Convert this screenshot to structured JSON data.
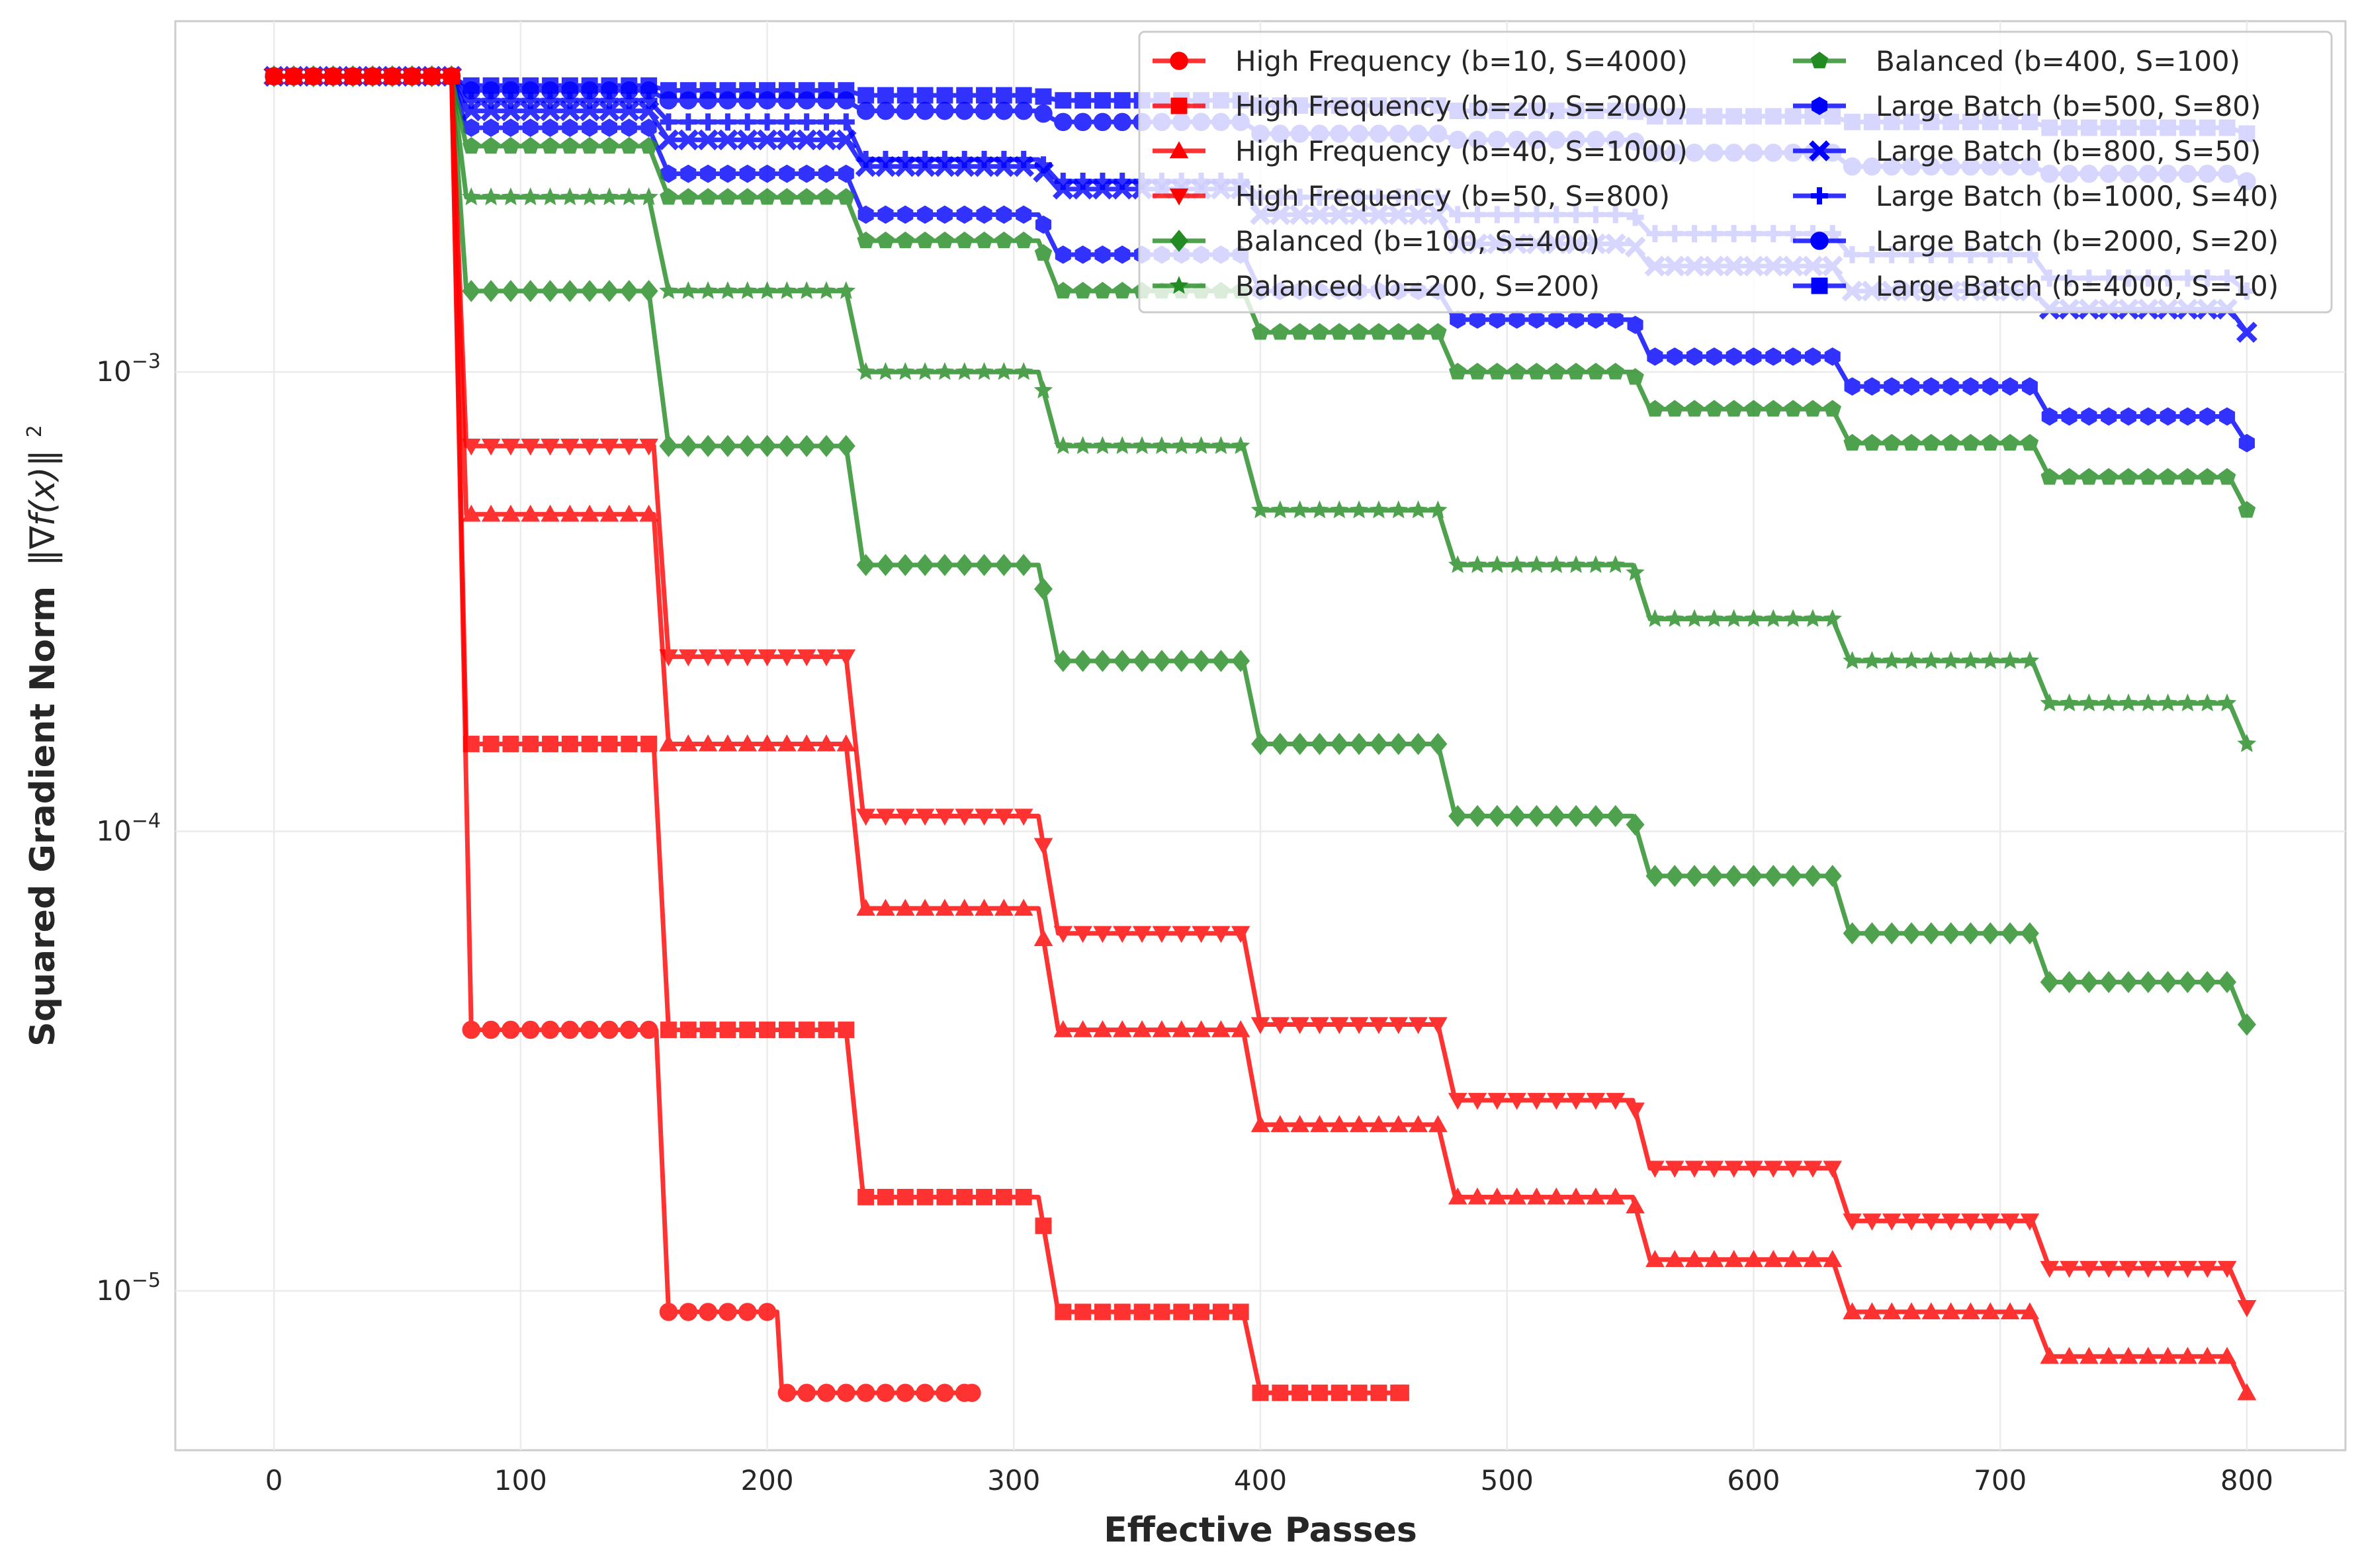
{
  "chart_data": {
    "type": "line",
    "title": "",
    "xlabel": "Effective Passes",
    "ylabel": "Squared Gradient Norm",
    "ylabel_math": "‖∇f(x)‖",
    "ylabel_power": "2",
    "yscale": "log",
    "xlim": [
      -40,
      840
    ],
    "ylim": [
      4.5e-06,
      0.0058
    ],
    "xticks": [
      0,
      100,
      200,
      300,
      400,
      500,
      600,
      700,
      800
    ],
    "yticks": [
      {
        "value": 1e-05,
        "base": "10",
        "exp": "−5"
      },
      {
        "value": 0.0001,
        "base": "10",
        "exp": "−4"
      },
      {
        "value": 0.001,
        "base": "10",
        "exp": "−3"
      }
    ],
    "grid": true,
    "legend_position": "top-right",
    "legend_columns": 2,
    "initial_value": 0.0044,
    "initial_until": 72,
    "series": [
      {
        "name": "High Frequency (b=10, S=4000)",
        "color": "#ff0000",
        "marker": "circle",
        "end": 283,
        "knots": [
          [
            72,
            0.0044
          ],
          [
            80,
            3.7e-05
          ],
          [
            155,
            3.7e-05
          ],
          [
            160,
            9e-06
          ],
          [
            204,
            9e-06
          ],
          [
            206,
            6e-06
          ],
          [
            283,
            6e-06
          ]
        ]
      },
      {
        "name": "High Frequency (b=20, S=2000)",
        "color": "#ff0000",
        "marker": "square",
        "end": 457,
        "knots": [
          [
            72,
            0.0044
          ],
          [
            78,
            0.000155
          ],
          [
            154,
            0.000155
          ],
          [
            160,
            3.7e-05
          ],
          [
            232,
            3.7e-05
          ],
          [
            239,
            1.6e-05
          ],
          [
            310,
            1.6e-05
          ],
          [
            318,
            9e-06
          ],
          [
            393,
            9e-06
          ],
          [
            400,
            6e-06
          ],
          [
            457,
            6e-06
          ]
        ]
      },
      {
        "name": "High Frequency (b=40, S=1000)",
        "color": "#ff0000",
        "marker": "triangle-up",
        "end": 800,
        "knots": [
          [
            72,
            0.0044
          ],
          [
            78,
            0.00049
          ],
          [
            154,
            0.00049
          ],
          [
            160,
            0.000155
          ],
          [
            232,
            0.000155
          ],
          [
            239,
            6.8e-05
          ],
          [
            310,
            6.8e-05
          ],
          [
            318,
            3.7e-05
          ],
          [
            393,
            3.7e-05
          ],
          [
            400,
            2.3e-05
          ],
          [
            472,
            2.3e-05
          ],
          [
            479,
            1.6e-05
          ],
          [
            551,
            1.6e-05
          ],
          [
            558,
            1.17e-05
          ],
          [
            632,
            1.17e-05
          ],
          [
            639,
            9e-06
          ],
          [
            713,
            9e-06
          ],
          [
            720,
            7.2e-06
          ],
          [
            793,
            7.2e-06
          ],
          [
            800,
            6e-06
          ]
        ]
      },
      {
        "name": "High Frequency (b=50, S=800)",
        "color": "#ff0000",
        "marker": "triangle-down",
        "end": 800,
        "knots": [
          [
            72,
            0.0044
          ],
          [
            78,
            0.00069
          ],
          [
            154,
            0.00069
          ],
          [
            160,
            0.00024
          ],
          [
            232,
            0.00024
          ],
          [
            239,
            0.000108
          ],
          [
            310,
            0.000108
          ],
          [
            318,
            6e-05
          ],
          [
            393,
            6e-05
          ],
          [
            400,
            3.8e-05
          ],
          [
            472,
            3.8e-05
          ],
          [
            479,
            2.6e-05
          ],
          [
            551,
            2.6e-05
          ],
          [
            558,
            1.85e-05
          ],
          [
            632,
            1.85e-05
          ],
          [
            639,
            1.42e-05
          ],
          [
            713,
            1.42e-05
          ],
          [
            720,
            1.12e-05
          ],
          [
            793,
            1.12e-05
          ],
          [
            800,
            9.2e-06
          ]
        ]
      },
      {
        "name": "Balanced (b=100, S=400)",
        "color": "#228b22",
        "marker": "diamond",
        "end": 800,
        "knots": [
          [
            72,
            0.0044
          ],
          [
            78,
            0.0015
          ],
          [
            152,
            0.0015
          ],
          [
            160,
            0.00069
          ],
          [
            232,
            0.00069
          ],
          [
            239,
            0.00038
          ],
          [
            310,
            0.00038
          ],
          [
            318,
            0.000235
          ],
          [
            393,
            0.000235
          ],
          [
            400,
            0.000155
          ],
          [
            472,
            0.000155
          ],
          [
            479,
            0.000108
          ],
          [
            551,
            0.000108
          ],
          [
            558,
            8e-05
          ],
          [
            632,
            8e-05
          ],
          [
            639,
            6e-05
          ],
          [
            713,
            6e-05
          ],
          [
            720,
            4.7e-05
          ],
          [
            793,
            4.7e-05
          ],
          [
            800,
            3.8e-05
          ]
        ]
      },
      {
        "name": "Balanced (b=200, S=200)",
        "color": "#228b22",
        "marker": "star",
        "end": 800,
        "knots": [
          [
            72,
            0.0044
          ],
          [
            78,
            0.0024
          ],
          [
            152,
            0.0024
          ],
          [
            160,
            0.0015
          ],
          [
            232,
            0.0015
          ],
          [
            239,
            0.001
          ],
          [
            310,
            0.001
          ],
          [
            318,
            0.00069
          ],
          [
            393,
            0.00069
          ],
          [
            400,
            0.0005
          ],
          [
            472,
            0.0005
          ],
          [
            479,
            0.00038
          ],
          [
            551,
            0.00038
          ],
          [
            558,
            0.00029
          ],
          [
            632,
            0.00029
          ],
          [
            639,
            0.000235
          ],
          [
            713,
            0.000235
          ],
          [
            720,
            0.00019
          ],
          [
            793,
            0.00019
          ],
          [
            800,
            0.000155
          ]
        ]
      },
      {
        "name": "Balanced (b=400, S=100)",
        "color": "#228b22",
        "marker": "pentagon",
        "end": 800,
        "knots": [
          [
            72,
            0.0044
          ],
          [
            78,
            0.0031
          ],
          [
            152,
            0.0031
          ],
          [
            160,
            0.0024
          ],
          [
            232,
            0.0024
          ],
          [
            239,
            0.00193
          ],
          [
            310,
            0.00193
          ],
          [
            318,
            0.0015
          ],
          [
            393,
            0.0015
          ],
          [
            400,
            0.00122
          ],
          [
            472,
            0.00122
          ],
          [
            479,
            0.001
          ],
          [
            551,
            0.001
          ],
          [
            558,
            0.00083
          ],
          [
            632,
            0.00083
          ],
          [
            639,
            0.0007
          ],
          [
            713,
            0.0007
          ],
          [
            720,
            0.00059
          ],
          [
            793,
            0.00059
          ],
          [
            800,
            0.0005
          ]
        ]
      },
      {
        "name": "Large Batch (b=500, S=80)",
        "color": "#0000ff",
        "marker": "hexagon",
        "end": 800,
        "knots": [
          [
            72,
            0.0044
          ],
          [
            78,
            0.0034
          ],
          [
            152,
            0.0034
          ],
          [
            160,
            0.0027
          ],
          [
            232,
            0.0027
          ],
          [
            239,
            0.0022
          ],
          [
            310,
            0.0022
          ],
          [
            318,
            0.0018
          ],
          [
            393,
            0.0018
          ],
          [
            400,
            0.0015
          ],
          [
            472,
            0.0015
          ],
          [
            479,
            0.0013
          ],
          [
            551,
            0.0013
          ],
          [
            558,
            0.00108
          ],
          [
            632,
            0.00108
          ],
          [
            639,
            0.00093
          ],
          [
            713,
            0.00093
          ],
          [
            720,
            0.0008
          ],
          [
            793,
            0.0008
          ],
          [
            800,
            0.0007
          ]
        ]
      },
      {
        "name": "Large Batch (b=800, S=50)",
        "color": "#0000ff",
        "marker": "x",
        "end": 800,
        "knots": [
          [
            72,
            0.0044
          ],
          [
            78,
            0.0037
          ],
          [
            152,
            0.0037
          ],
          [
            160,
            0.0032
          ],
          [
            232,
            0.0032
          ],
          [
            239,
            0.0028
          ],
          [
            310,
            0.0028
          ],
          [
            318,
            0.0025
          ],
          [
            393,
            0.0025
          ],
          [
            400,
            0.0022
          ],
          [
            472,
            0.0022
          ],
          [
            479,
            0.0019
          ],
          [
            551,
            0.0019
          ],
          [
            558,
            0.0017
          ],
          [
            632,
            0.0017
          ],
          [
            639,
            0.0015
          ],
          [
            713,
            0.0015
          ],
          [
            720,
            0.00137
          ],
          [
            793,
            0.00137
          ],
          [
            800,
            0.00122
          ]
        ]
      },
      {
        "name": "Large Batch (b=1000, S=40)",
        "color": "#0000ff",
        "marker": "plus",
        "end": 800,
        "knots": [
          [
            72,
            0.0044
          ],
          [
            78,
            0.0039
          ],
          [
            152,
            0.0039
          ],
          [
            160,
            0.0035
          ],
          [
            232,
            0.0035
          ],
          [
            239,
            0.0029
          ],
          [
            310,
            0.0029
          ],
          [
            318,
            0.0026
          ],
          [
            393,
            0.0026
          ],
          [
            400,
            0.0024
          ],
          [
            472,
            0.0024
          ],
          [
            479,
            0.0022
          ],
          [
            551,
            0.0022
          ],
          [
            558,
            0.002
          ],
          [
            632,
            0.002
          ],
          [
            639,
            0.0018
          ],
          [
            713,
            0.0018
          ],
          [
            720,
            0.0016
          ],
          [
            793,
            0.0016
          ],
          [
            800,
            0.0015
          ]
        ]
      },
      {
        "name": "Large Batch (b=2000, S=20)",
        "color": "#0000ff",
        "marker": "circle",
        "end": 800,
        "knots": [
          [
            72,
            0.0044
          ],
          [
            78,
            0.0041
          ],
          [
            152,
            0.0041
          ],
          [
            160,
            0.0039
          ],
          [
            232,
            0.0039
          ],
          [
            239,
            0.0037
          ],
          [
            310,
            0.0037
          ],
          [
            318,
            0.0035
          ],
          [
            393,
            0.0035
          ],
          [
            400,
            0.0033
          ],
          [
            472,
            0.0033
          ],
          [
            479,
            0.0032
          ],
          [
            551,
            0.0032
          ],
          [
            558,
            0.003
          ],
          [
            632,
            0.003
          ],
          [
            639,
            0.0028
          ],
          [
            713,
            0.0028
          ],
          [
            720,
            0.0027
          ],
          [
            793,
            0.0027
          ],
          [
            800,
            0.0026
          ]
        ]
      },
      {
        "name": "Large Batch (b=4000, S=10)",
        "color": "#0000ff",
        "marker": "square",
        "end": 800,
        "knots": [
          [
            72,
            0.0044
          ],
          [
            78,
            0.0042
          ],
          [
            152,
            0.0042
          ],
          [
            160,
            0.0041
          ],
          [
            232,
            0.0041
          ],
          [
            239,
            0.004
          ],
          [
            310,
            0.004
          ],
          [
            318,
            0.0039
          ],
          [
            393,
            0.0039
          ],
          [
            400,
            0.0038
          ],
          [
            472,
            0.0038
          ],
          [
            479,
            0.0037
          ],
          [
            551,
            0.0037
          ],
          [
            558,
            0.0036
          ],
          [
            632,
            0.0036
          ],
          [
            639,
            0.0035
          ],
          [
            713,
            0.0035
          ],
          [
            720,
            0.0034
          ],
          [
            793,
            0.0034
          ],
          [
            800,
            0.0033
          ]
        ]
      }
    ]
  }
}
